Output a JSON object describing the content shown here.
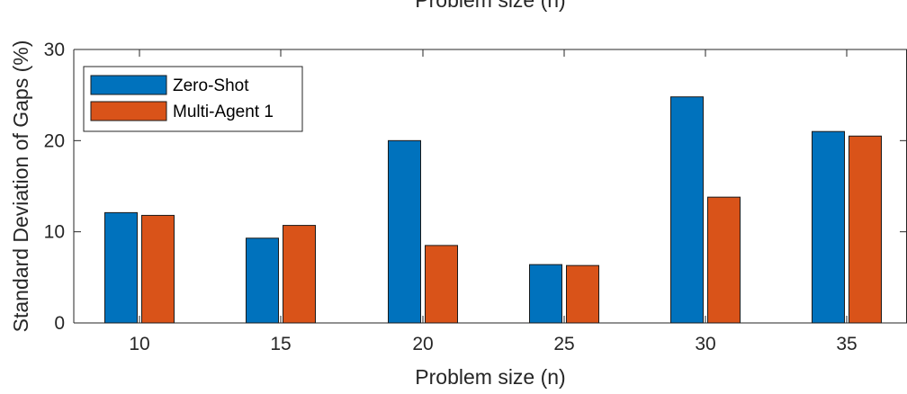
{
  "chart_data": {
    "type": "bar",
    "title": "Problem size (n)",
    "xlabel": "Problem size (n)",
    "ylabel": "Standard Deviation of Gaps (%)",
    "categories": [
      "10",
      "15",
      "20",
      "25",
      "30",
      "35"
    ],
    "series": [
      {
        "name": "Zero-Shot",
        "color": "#0072BD",
        "values": [
          12.1,
          9.3,
          20.0,
          6.4,
          24.8,
          21.0
        ]
      },
      {
        "name": "Multi-Agent 1",
        "color": "#D95319",
        "values": [
          11.8,
          10.7,
          8.5,
          6.3,
          13.8,
          20.5
        ]
      }
    ],
    "ylim": [
      0,
      30
    ],
    "yticks": [
      0,
      10,
      20,
      30
    ],
    "legend_position": "top-left",
    "grid": false
  }
}
